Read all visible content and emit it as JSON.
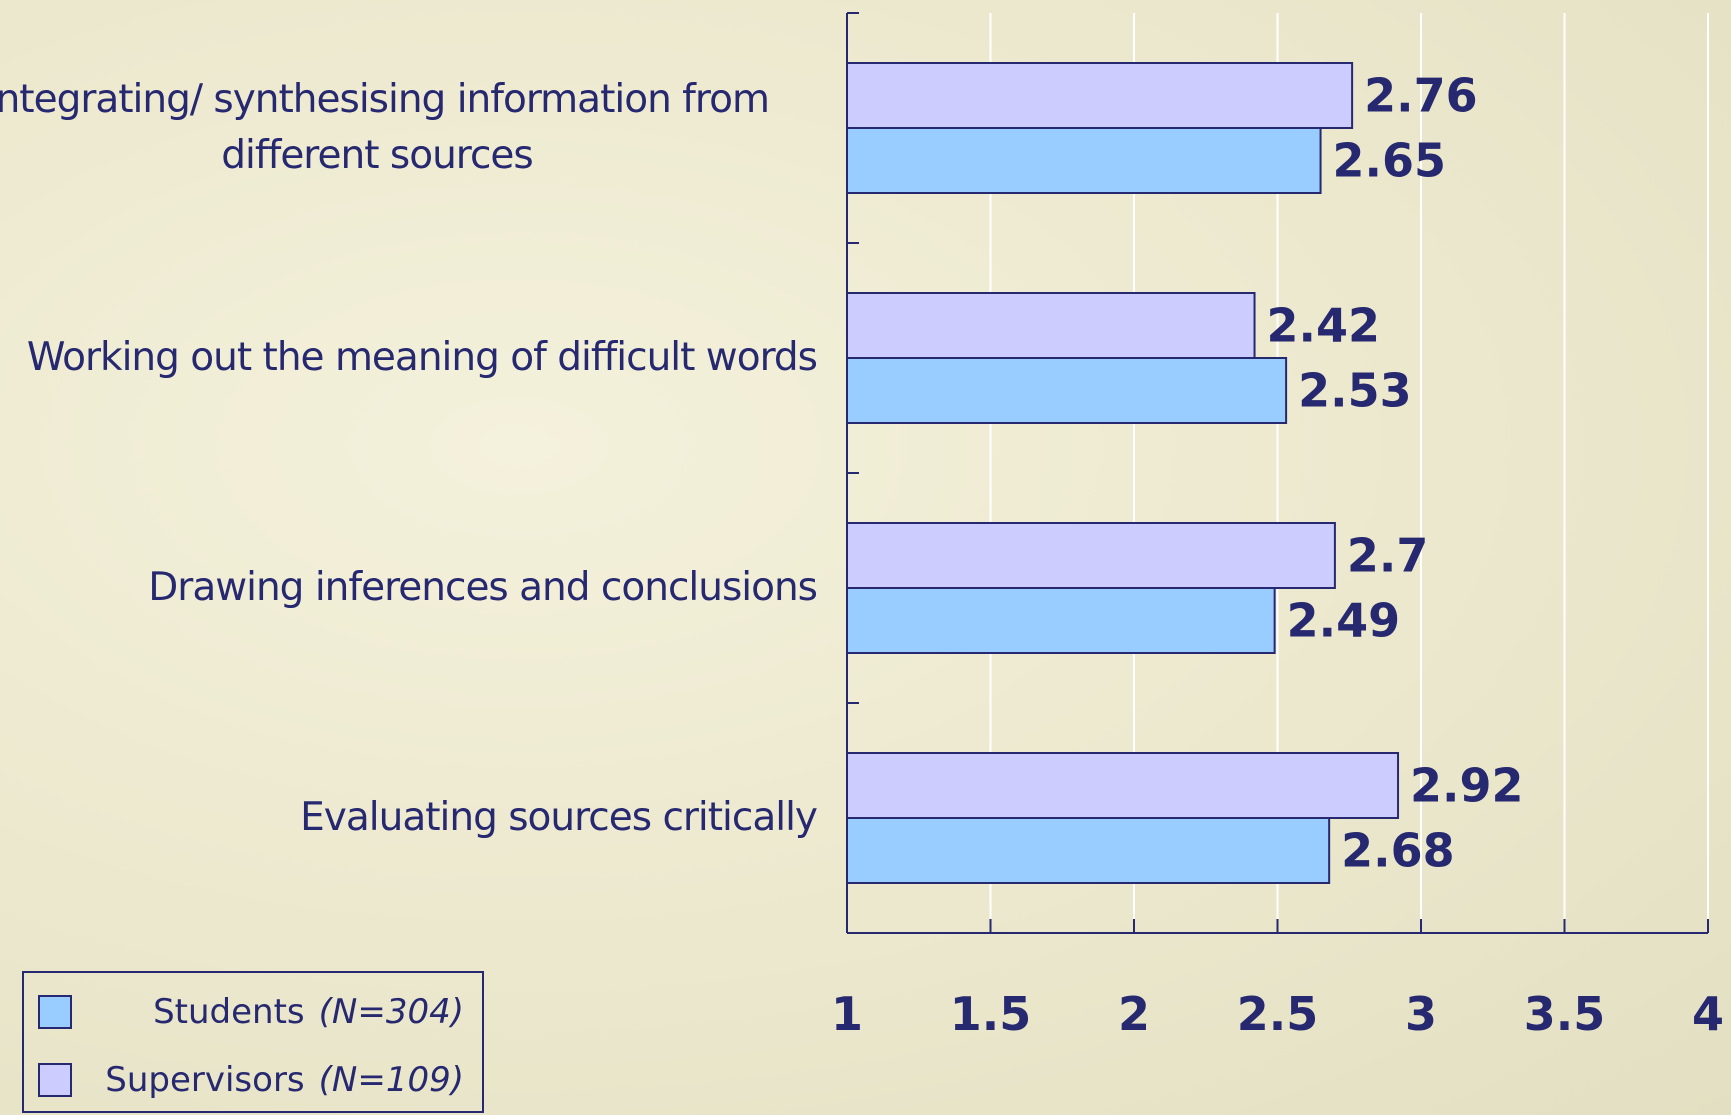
{
  "chart_data": {
    "type": "hbar",
    "categories": [
      "Integrating/ synthesising information from different sources",
      "Working out the meaning of difficult words",
      "Drawing inferences and conclusions",
      "Evaluating sources critically"
    ],
    "series": [
      {
        "name": "Supervisors",
        "n_label": "(N=109)",
        "color": "#ccccff",
        "values": [
          2.76,
          2.42,
          2.7,
          2.92
        ]
      },
      {
        "name": "Students",
        "n_label": "(N=304)",
        "color": "#99ccff",
        "values": [
          2.65,
          2.53,
          2.49,
          2.68
        ]
      }
    ],
    "xlim": [
      1,
      4
    ],
    "xticks": [
      1,
      1.5,
      2,
      2.5,
      3,
      3.5,
      4
    ],
    "grid": true
  }
}
